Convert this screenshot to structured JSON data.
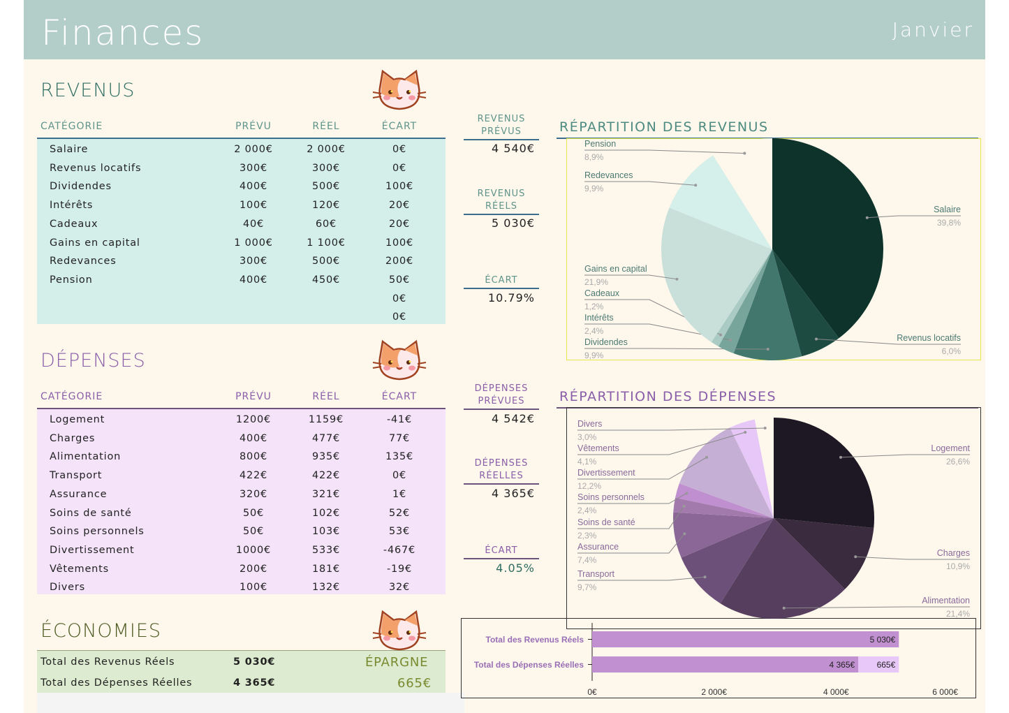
{
  "header": {
    "title": "Finances",
    "month": "Janvier"
  },
  "revenus": {
    "title": "REVENUS",
    "columns": [
      "CATÉGORIE",
      "PRÉVU",
      "RÉEL",
      "ÉCART"
    ],
    "rows": [
      [
        "Salaire",
        "2 000€",
        "2 000€",
        "0€"
      ],
      [
        "Revenus locatifs",
        "300€",
        "300€",
        "0€"
      ],
      [
        "Dividendes",
        "400€",
        "500€",
        "100€"
      ],
      [
        "Intérêts",
        "100€",
        "120€",
        "20€"
      ],
      [
        "Cadeaux",
        "40€",
        "60€",
        "20€"
      ],
      [
        "Gains en capital",
        "1 000€",
        "1 100€",
        "100€"
      ],
      [
        "Redevances",
        "300€",
        "500€",
        "200€"
      ],
      [
        "Pension",
        "400€",
        "450€",
        "50€"
      ],
      [
        "",
        "",
        "",
        "0€"
      ],
      [
        "",
        "",
        "",
        "0€"
      ]
    ],
    "kpi": {
      "prevus_label": "REVENUS PRÉVUS",
      "prevus": "4 540€",
      "reels_label": "REVENUS RÉELS",
      "reels": "5 030€",
      "ecart_label": "ÉCART",
      "ecart": "10.79%"
    }
  },
  "depenses": {
    "title": "DÉPENSES",
    "columns": [
      "CATÉGORIE",
      "PRÉVU",
      "RÉEL",
      "ÉCART"
    ],
    "rows": [
      [
        "Logement",
        "1200€",
        "1159€",
        "-41€"
      ],
      [
        "Charges",
        "400€",
        "477€",
        "77€"
      ],
      [
        "Alimentation",
        "800€",
        "935€",
        "135€"
      ],
      [
        "Transport",
        "422€",
        "422€",
        "0€"
      ],
      [
        "Assurance",
        "320€",
        "321€",
        "1€"
      ],
      [
        "Soins de santé",
        "50€",
        "102€",
        "52€"
      ],
      [
        "Soins personnels",
        "50€",
        "103€",
        "53€"
      ],
      [
        "Divertissement",
        "1000€",
        "533€",
        "-467€"
      ],
      [
        "Vêtements",
        "200€",
        "181€",
        "-19€"
      ],
      [
        "Divers",
        "100€",
        "132€",
        "32€"
      ]
    ],
    "kpi": {
      "prevues_label": "DÉPENSES PRÉVUES",
      "prevues": "4 542€",
      "reelles_label": "DÉPENSES RÉELLES",
      "reelles": "4 365€",
      "ecart_label": "ÉCART",
      "ecart": "4.05%"
    }
  },
  "economies": {
    "title": "ÉCONOMIES",
    "rows": [
      [
        "Total des Revenus Réels",
        "5 030€"
      ],
      [
        "Total des Dépenses Réelles",
        "4 365€"
      ]
    ],
    "epargne_label": "ÉPARGNE",
    "epargne": "665€"
  },
  "colors": {
    "header": "#b3cdc8",
    "revenus_table": "#d4efea",
    "depenses_table": "#f5e3fa",
    "economies_table": "#ddecd0",
    "bar": "#c190d0",
    "bar_light": "#e8c8f8"
  },
  "chart_data": [
    {
      "type": "pie",
      "title": "RÉPARTITION DES REVENUS",
      "slices": [
        {
          "label": "Salaire",
          "value": 2000,
          "pct": "39,8%",
          "color": "#0d332b"
        },
        {
          "label": "Revenus locatifs",
          "value": 300,
          "pct": "6,0%",
          "color": "#1d4a41"
        },
        {
          "label": "Dividendes",
          "value": 500,
          "pct": "9,9%",
          "color": "#42776d"
        },
        {
          "label": "Intérêts",
          "value": 120,
          "pct": "2,4%",
          "color": "#77a59b"
        },
        {
          "label": "Cadeaux",
          "value": 60,
          "pct": "1,2%",
          "color": "#aacbc3"
        },
        {
          "label": "Gains en capital",
          "value": 1100,
          "pct": "21,9%",
          "color": "#c9e0da"
        },
        {
          "label": "Redevances",
          "value": 500,
          "pct": "9,9%",
          "color": "#d5efea"
        },
        {
          "label": "Pension",
          "value": 450,
          "pct": "8,9%",
          "color": "#fdf7ec"
        }
      ]
    },
    {
      "type": "pie",
      "title": "RÉPARTITION DES DÉPENSES",
      "slices": [
        {
          "label": "Logement",
          "value": 1159,
          "pct": "26,6%",
          "color": "#1e1724"
        },
        {
          "label": "Charges",
          "value": 477,
          "pct": "10,9%",
          "color": "#3a2b3e"
        },
        {
          "label": "Alimentation",
          "value": 935,
          "pct": "21,4%",
          "color": "#553e5e"
        },
        {
          "label": "Transport",
          "value": 422,
          "pct": "9,7%",
          "color": "#6d5079"
        },
        {
          "label": "Assurance",
          "value": 321,
          "pct": "7,4%",
          "color": "#8b6797"
        },
        {
          "label": "Soins de santé",
          "value": 102,
          "pct": "2,3%",
          "color": "#a27aac"
        },
        {
          "label": "Soins personnels",
          "value": 103,
          "pct": "2,4%",
          "color": "#bf8fcf"
        },
        {
          "label": "Divertissement",
          "value": 533,
          "pct": "12,2%",
          "color": "#c6afd4"
        },
        {
          "label": "Vêtements",
          "value": 181,
          "pct": "4,1%",
          "color": "#e6c7f7"
        },
        {
          "label": "Divers",
          "value": 132,
          "pct": "3,0%",
          "color": "#fdf7ec"
        }
      ]
    },
    {
      "type": "bar",
      "orientation": "horizontal",
      "xlim": [
        0,
        6000
      ],
      "ticks": [
        "0€",
        "2 000€",
        "4 000€",
        "6 000€"
      ],
      "tick_values": [
        0,
        2000,
        4000,
        6000
      ],
      "categories": [
        "Total des Revenus Réels",
        "Total des Dépenses Réelles"
      ],
      "bars": [
        {
          "segments": [
            {
              "value": 5030,
              "label": "5 030€",
              "color": "#c190d0"
            }
          ]
        },
        {
          "segments": [
            {
              "value": 4365,
              "label": "4 365€",
              "color": "#c190d0"
            },
            {
              "value": 665,
              "label": "665€",
              "color": "#e8c8f8"
            }
          ]
        }
      ]
    }
  ]
}
